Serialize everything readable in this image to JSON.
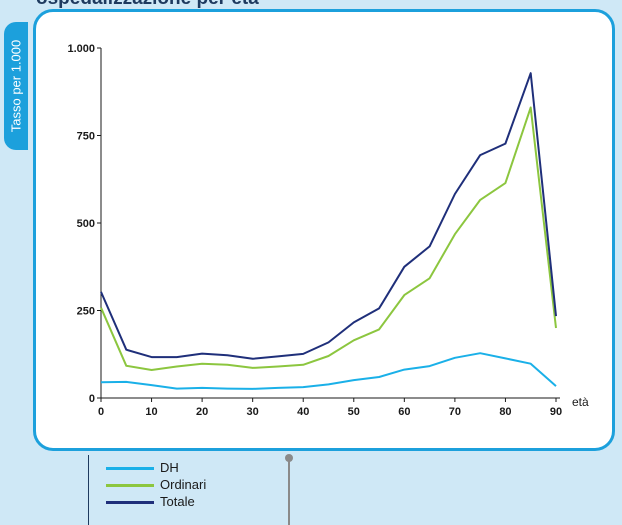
{
  "title": "ospedalizzazione per età",
  "colors": {
    "frame": "#1ca0dc",
    "background": "#cfe8f6"
  },
  "chart_data": {
    "type": "line",
    "ylabel": "Tasso per 1.000",
    "xlabel": "età",
    "xlim": [
      0,
      90
    ],
    "ylim": [
      0,
      1000
    ],
    "xticks": [
      0,
      10,
      20,
      30,
      40,
      50,
      60,
      70,
      80,
      90
    ],
    "yticks": [
      {
        "value": 0,
        "label": "0"
      },
      {
        "value": 250,
        "label": "250"
      },
      {
        "value": 500,
        "label": "500"
      },
      {
        "value": 750,
        "label": "750"
      },
      {
        "value": 1000,
        "label": "1.000"
      }
    ],
    "x": [
      0,
      5,
      10,
      15,
      20,
      25,
      30,
      35,
      40,
      45,
      50,
      55,
      60,
      65,
      70,
      75,
      80,
      85,
      90
    ],
    "series": [
      {
        "name": "DH",
        "color": "#1ab0e8",
        "values": [
          45,
          46,
          37,
          27,
          29,
          27,
          26,
          29,
          31,
          39,
          51,
          60,
          81,
          91,
          115,
          128,
          113,
          98,
          34
        ]
      },
      {
        "name": "Ordinari",
        "color": "#8cc63f",
        "values": [
          258,
          92,
          80,
          90,
          98,
          95,
          86,
          90,
          95,
          120,
          165,
          196,
          294,
          342,
          468,
          566,
          614,
          830,
          200
        ]
      },
      {
        "name": "Totale",
        "color": "#1f2f7a",
        "values": [
          303,
          138,
          117,
          117,
          127,
          122,
          112,
          119,
          126,
          159,
          216,
          256,
          375,
          433,
          583,
          694,
          727,
          928,
          234
        ]
      }
    ],
    "legend": "bottom-left",
    "grid": false
  }
}
